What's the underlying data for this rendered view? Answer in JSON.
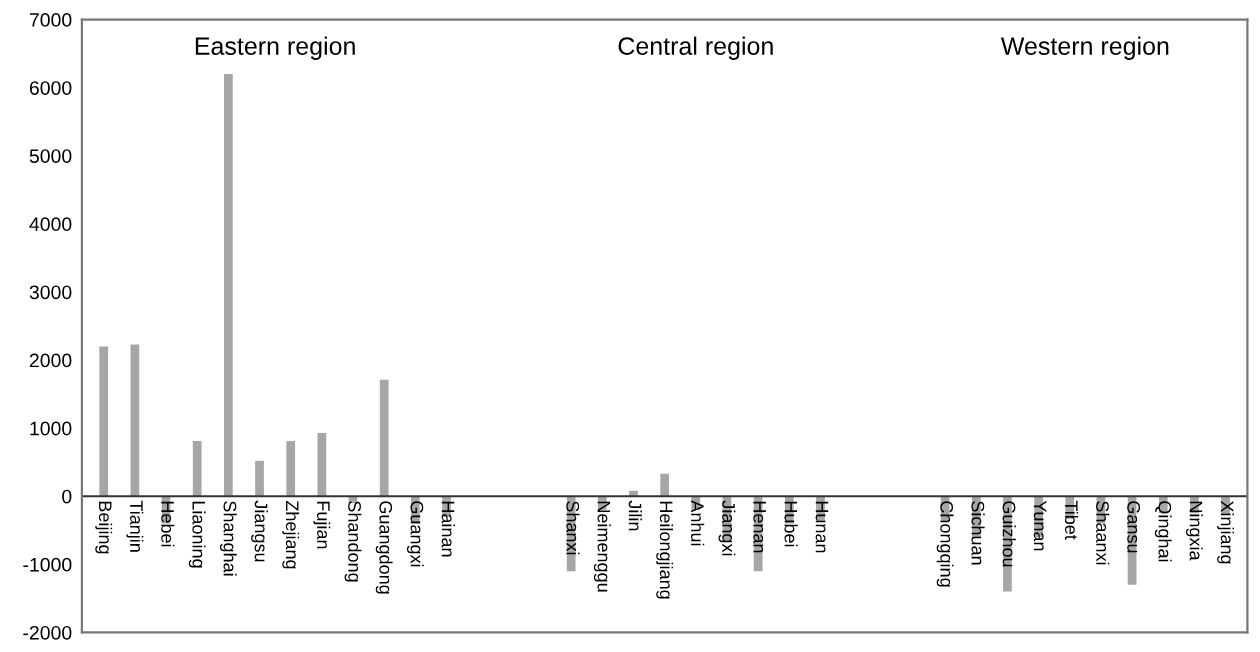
{
  "chart_data": {
    "type": "bar",
    "categories": [
      "Beijing",
      "Tianjin",
      "Hebei",
      "Liaoning",
      "Shanghai",
      "Jiangsu",
      "Zhejiang",
      "Fujian",
      "Shandong",
      "Guangdong",
      "Guangxi",
      "Hainan",
      null,
      null,
      null,
      "Shanxi",
      "Neimenggu",
      "Jilin",
      "Heilongjiang",
      "Anhui",
      "Jiangxi",
      "Henan",
      "Hubei",
      "Hunan",
      null,
      null,
      null,
      "Chongqing",
      "Sichuan",
      "Guizhou",
      "Yunan",
      "Tibet",
      "Shaanxi",
      "Gansu",
      "Qinghai",
      "Ningxia",
      "Xinjiang"
    ],
    "values": [
      2200,
      2230,
      -400,
      810,
      6200,
      520,
      810,
      930,
      -100,
      1710,
      -400,
      -300,
      null,
      null,
      null,
      -1100,
      -200,
      80,
      330,
      -200,
      -660,
      -1100,
      -400,
      -350,
      null,
      null,
      null,
      -380,
      -600,
      -1400,
      -600,
      -330,
      -400,
      -1300,
      -250,
      -250,
      -250
    ],
    "color": "#a6a6a6",
    "annotations": [
      "Eastern region",
      "Central region",
      "Western region"
    ],
    "ylim": [
      -2000,
      7000
    ],
    "yticks": [
      -2000,
      -1000,
      0,
      1000,
      2000,
      3000,
      4000,
      5000,
      6000,
      7000
    ],
    "grid": false,
    "legend": false
  }
}
